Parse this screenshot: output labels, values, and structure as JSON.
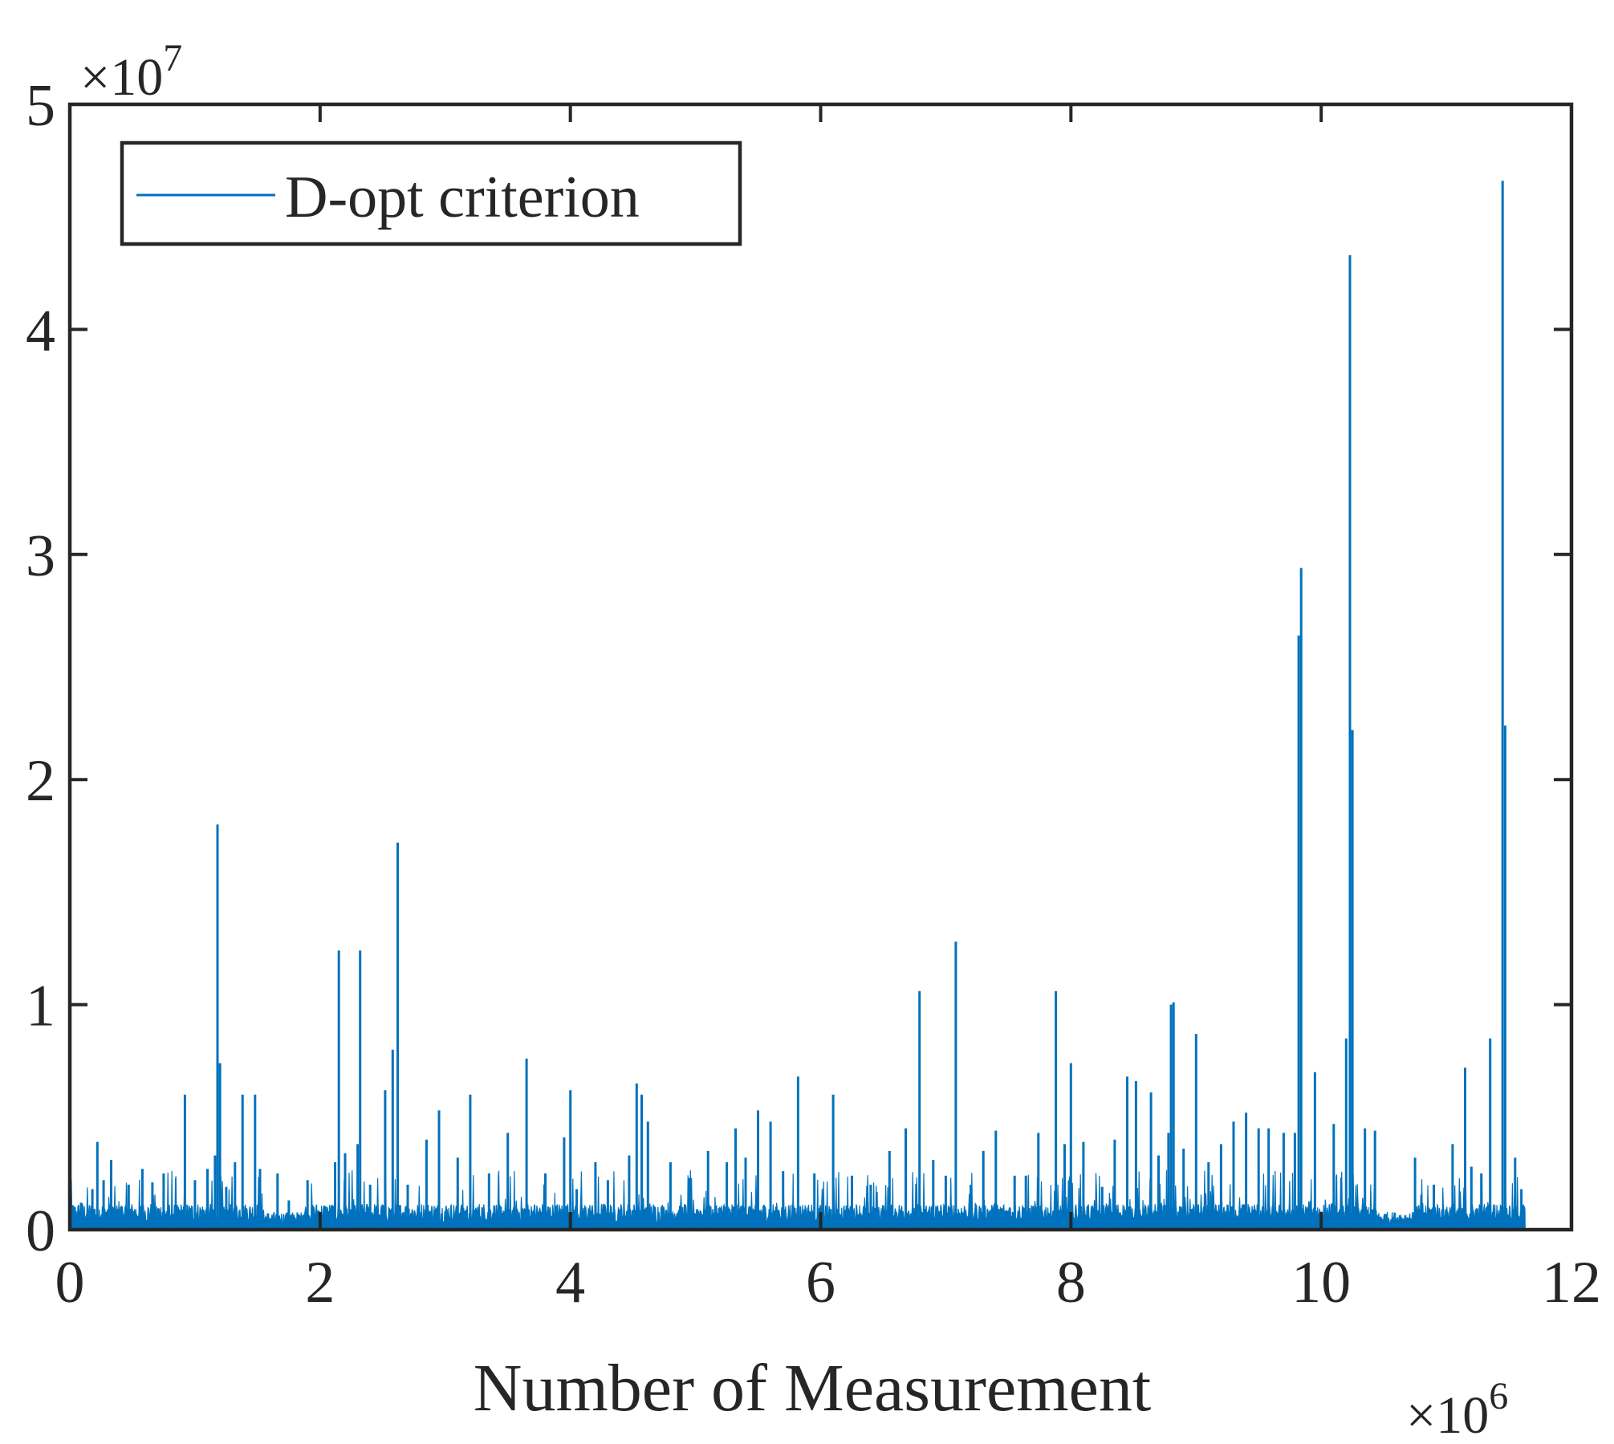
{
  "chart_data": {
    "type": "line",
    "title": "",
    "xlabel": "Number of Measurement",
    "ylabel": "",
    "xlim": [
      0,
      12
    ],
    "ylim": [
      0,
      5
    ],
    "x_scale_label": "×10",
    "x_scale_exponent": "6",
    "y_scale_label": "×10",
    "y_scale_exponent": "7",
    "x_ticks": [
      0,
      2,
      4,
      6,
      8,
      10,
      12
    ],
    "x_tick_labels": [
      "0",
      "2",
      "4",
      "6",
      "8",
      "10",
      "12"
    ],
    "y_ticks": [
      0,
      1,
      2,
      3,
      4,
      5
    ],
    "y_tick_labels": [
      "0",
      "1",
      "2",
      "3",
      "4",
      "5"
    ],
    "grid": false,
    "legend": {
      "position": "top-left",
      "entries": [
        "D-opt criterion"
      ]
    },
    "series": [
      {
        "name": "D-opt criterion",
        "color": "#0072BD",
        "units_note": "x in units of 1e6 measurements, y in units of 1e7",
        "x_end": 11.63,
        "spikes": [
          [
            0.09,
            0.12
          ],
          [
            0.18,
            0.18
          ],
          [
            0.22,
            0.39
          ],
          [
            0.27,
            0.22
          ],
          [
            0.33,
            0.31
          ],
          [
            0.47,
            0.2
          ],
          [
            0.58,
            0.27
          ],
          [
            0.66,
            0.21
          ],
          [
            0.75,
            0.25
          ],
          [
            0.92,
            0.6
          ],
          [
            1.0,
            0.22
          ],
          [
            1.1,
            0.27
          ],
          [
            1.16,
            0.33
          ],
          [
            1.18,
            1.8
          ],
          [
            1.2,
            0.74
          ],
          [
            1.25,
            0.19
          ],
          [
            1.32,
            0.3
          ],
          [
            1.38,
            0.6
          ],
          [
            1.48,
            0.6
          ],
          [
            1.52,
            0.27
          ],
          [
            1.66,
            0.25
          ],
          [
            1.75,
            0.13
          ],
          [
            1.9,
            0.22
          ],
          [
            2.12,
            0.3
          ],
          [
            2.15,
            1.24
          ],
          [
            2.2,
            0.34
          ],
          [
            2.3,
            0.38
          ],
          [
            2.32,
            1.24
          ],
          [
            2.4,
            0.2
          ],
          [
            2.52,
            0.62
          ],
          [
            2.58,
            0.8
          ],
          [
            2.62,
            1.72
          ],
          [
            2.7,
            0.2
          ],
          [
            2.85,
            0.4
          ],
          [
            2.95,
            0.53
          ],
          [
            3.1,
            0.32
          ],
          [
            3.2,
            0.6
          ],
          [
            3.35,
            0.25
          ],
          [
            3.5,
            0.43
          ],
          [
            3.65,
            0.76
          ],
          [
            3.8,
            0.25
          ],
          [
            3.95,
            0.41
          ],
          [
            4.0,
            0.62
          ],
          [
            4.05,
            0.18
          ],
          [
            4.2,
            0.3
          ],
          [
            4.3,
            0.22
          ],
          [
            4.47,
            0.33
          ],
          [
            4.53,
            0.65
          ],
          [
            4.57,
            0.6
          ],
          [
            4.62,
            0.48
          ],
          [
            4.8,
            0.3
          ],
          [
            4.95,
            0.23
          ],
          [
            5.1,
            0.35
          ],
          [
            5.25,
            0.3
          ],
          [
            5.32,
            0.45
          ],
          [
            5.4,
            0.32
          ],
          [
            5.5,
            0.53
          ],
          [
            5.6,
            0.48
          ],
          [
            5.7,
            0.26
          ],
          [
            5.82,
            0.68
          ],
          [
            5.95,
            0.25
          ],
          [
            6.1,
            0.6
          ],
          [
            6.25,
            0.24
          ],
          [
            6.4,
            0.2
          ],
          [
            6.55,
            0.35
          ],
          [
            6.68,
            0.45
          ],
          [
            6.79,
            1.06
          ],
          [
            6.9,
            0.31
          ],
          [
            7.0,
            0.24
          ],
          [
            7.08,
            1.28
          ],
          [
            7.2,
            0.2
          ],
          [
            7.3,
            0.35
          ],
          [
            7.4,
            0.44
          ],
          [
            7.55,
            0.24
          ],
          [
            7.64,
            0.24
          ],
          [
            7.74,
            0.43
          ],
          [
            7.88,
            1.06
          ],
          [
            7.95,
            0.38
          ],
          [
            8.0,
            0.74
          ],
          [
            8.1,
            0.39
          ],
          [
            8.25,
            0.19
          ],
          [
            8.35,
            0.4
          ],
          [
            8.45,
            0.68
          ],
          [
            8.52,
            0.66
          ],
          [
            8.64,
            0.61
          ],
          [
            8.7,
            0.33
          ],
          [
            8.78,
            0.43
          ],
          [
            8.8,
            1.0
          ],
          [
            8.82,
            1.01
          ],
          [
            8.9,
            0.36
          ],
          [
            9.0,
            0.87
          ],
          [
            9.1,
            0.3
          ],
          [
            9.2,
            0.38
          ],
          [
            9.3,
            0.48
          ],
          [
            9.4,
            0.52
          ],
          [
            9.5,
            0.45
          ],
          [
            9.58,
            0.45
          ],
          [
            9.7,
            0.43
          ],
          [
            9.79,
            0.43
          ],
          [
            9.82,
            2.64
          ],
          [
            9.84,
            2.94
          ],
          [
            9.95,
            0.7
          ],
          [
            10.1,
            0.47
          ],
          [
            10.2,
            0.85
          ],
          [
            10.23,
            4.33
          ],
          [
            10.25,
            2.22
          ],
          [
            10.35,
            0.45
          ],
          [
            10.43,
            0.44
          ],
          [
            10.52,
            0.07
          ],
          [
            10.6,
            0.05
          ],
          [
            10.75,
            0.32
          ],
          [
            10.9,
            0.2
          ],
          [
            11.05,
            0.38
          ],
          [
            11.15,
            0.72
          ],
          [
            11.2,
            0.28
          ],
          [
            11.28,
            0.25
          ],
          [
            11.35,
            0.85
          ],
          [
            11.45,
            4.66
          ],
          [
            11.47,
            2.24
          ],
          [
            11.55,
            0.32
          ],
          [
            11.6,
            0.18
          ]
        ],
        "baseline_level": 0.1
      }
    ]
  }
}
